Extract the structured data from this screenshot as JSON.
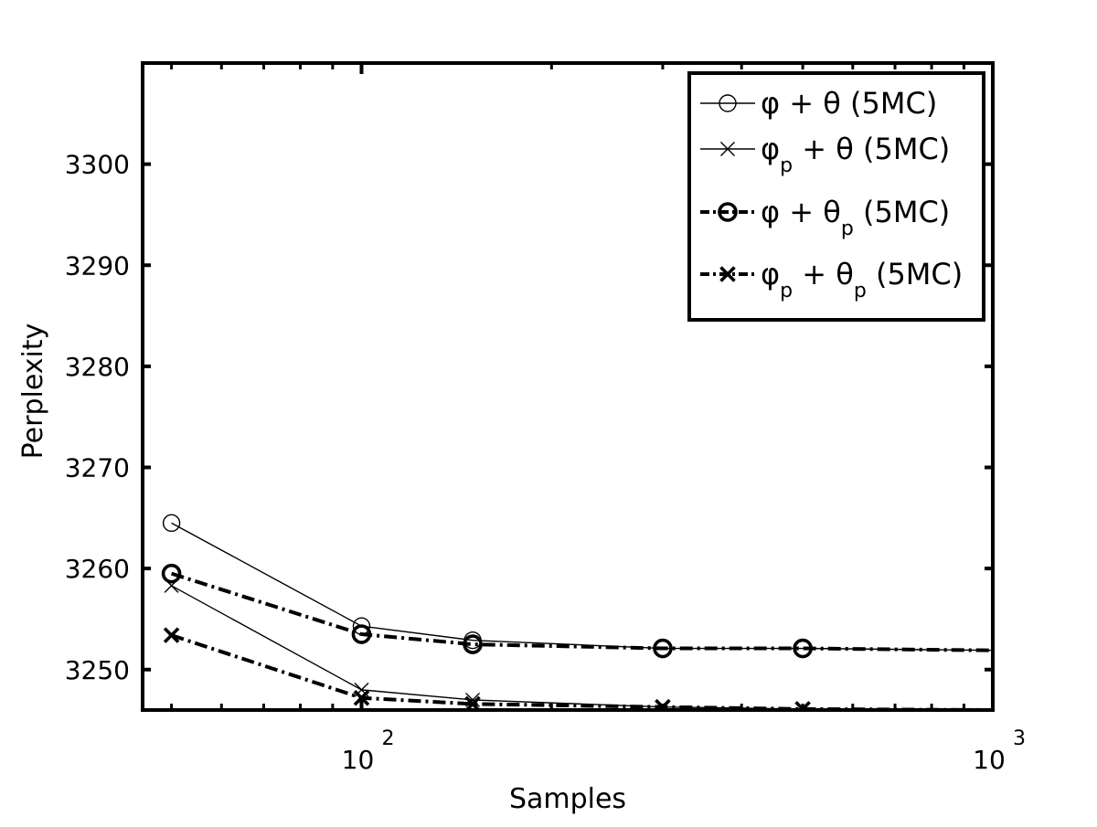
{
  "chart_data": {
    "type": "line",
    "xlabel": "Samples",
    "ylabel": "Perplexity",
    "xscale": "log",
    "xlim": [
      45,
      1000
    ],
    "ylim": [
      3246,
      3310
    ],
    "grid": false,
    "legend_position": "top-right",
    "x_ticks": [
      {
        "value": 100,
        "base": "10",
        "exp": "2"
      },
      {
        "value": 1000,
        "base": "10",
        "exp": "3"
      }
    ],
    "y_ticks": [
      3250,
      3260,
      3270,
      3280,
      3290,
      3300
    ],
    "x": [
      50,
      100,
      150,
      300,
      500,
      1000
    ],
    "series": [
      {
        "name": "φ + θ (5MC)",
        "legend": {
          "parts": [
            {
              "t": "φ"
            },
            {
              "t": "  + θ   (5MC)"
            }
          ]
        },
        "marker": "circle",
        "weight": "thin",
        "dash": "solid",
        "values": [
          3264.5,
          3254.3,
          3252.9,
          3252.1,
          3252.1,
          3251.9
        ],
        "markers_at": [
          0,
          1,
          2,
          3,
          4
        ]
      },
      {
        "name": "φp + θ (5MC)",
        "legend": {
          "parts": [
            {
              "t": "φ"
            },
            {
              "t": "p",
              "sub": true
            },
            {
              "t": " + θ   (5MC)"
            }
          ]
        },
        "marker": "x",
        "weight": "thin",
        "dash": "solid",
        "values": [
          3258.3,
          3248.0,
          3247.0,
          3246.3,
          3246.1,
          3246.0
        ],
        "markers_at": [
          0,
          1,
          2,
          3,
          4
        ]
      },
      {
        "name": "φ + θp (5MC)",
        "legend": {
          "parts": [
            {
              "t": "φ"
            },
            {
              "t": "  + θ"
            },
            {
              "t": "p",
              "sub": true
            },
            {
              "t": " (5MC)"
            }
          ]
        },
        "marker": "circle",
        "weight": "bold",
        "dash": "dashdot",
        "values": [
          3259.5,
          3253.5,
          3252.5,
          3252.1,
          3252.1,
          3251.9
        ],
        "markers_at": [
          0,
          1,
          2,
          3,
          4
        ]
      },
      {
        "name": "φp + θp (5MC)",
        "legend": {
          "parts": [
            {
              "t": "φ"
            },
            {
              "t": "p",
              "sub": true
            },
            {
              "t": " + θ"
            },
            {
              "t": "p",
              "sub": true
            },
            {
              "t": " (5MC)"
            }
          ]
        },
        "marker": "x",
        "weight": "bold",
        "dash": "dashdot",
        "values": [
          3253.4,
          3247.2,
          3246.6,
          3246.3,
          3246.1,
          3246.0
        ],
        "markers_at": [
          0,
          1,
          2,
          3,
          4
        ]
      }
    ],
    "colors": {
      "line": "#000000",
      "background": "#ffffff"
    }
  }
}
